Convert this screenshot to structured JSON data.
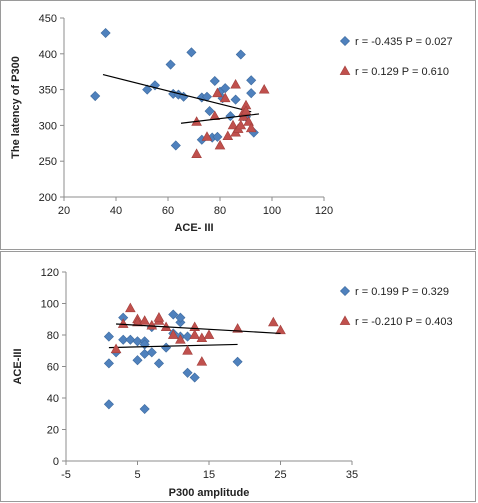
{
  "chart_data": [
    {
      "type": "scatter",
      "title": "",
      "xlabel": "ACE- III",
      "ylabel": "The latency of P300",
      "xlim": [
        20,
        120
      ],
      "ylim": [
        200,
        450
      ],
      "xticks": [
        20,
        40,
        60,
        80,
        100,
        120
      ],
      "yticks": [
        200,
        250,
        300,
        350,
        400,
        450
      ],
      "grid": false,
      "legend_position": "right",
      "series": [
        {
          "name": "r = -0.435  P = 0.027",
          "marker": "diamond",
          "color": "#4f81bd",
          "points": [
            [
              32,
              341
            ],
            [
              36,
              429
            ],
            [
              52,
              350
            ],
            [
              55,
              356
            ],
            [
              61,
              385
            ],
            [
              62,
              344
            ],
            [
              63,
              272
            ],
            [
              64,
              343
            ],
            [
              66,
              340
            ],
            [
              69,
              402
            ],
            [
              73,
              280
            ],
            [
              73,
              339
            ],
            [
              75,
              340
            ],
            [
              76,
              320
            ],
            [
              77,
              283
            ],
            [
              78,
              362
            ],
            [
              79,
              284
            ],
            [
              80,
              347
            ],
            [
              81,
              338
            ],
            [
              82,
              352
            ],
            [
              84,
              313
            ],
            [
              86,
              336
            ],
            [
              88,
              399
            ],
            [
              89,
              313
            ],
            [
              90,
              312
            ],
            [
              92,
              363
            ],
            [
              92,
              345
            ],
            [
              93,
              290
            ]
          ],
          "trendline": {
            "x": [
              35,
              92
            ],
            "y": [
              371,
              319
            ]
          }
        },
        {
          "name": "r = 0.129  P = 0.610",
          "marker": "triangle",
          "color": "#c0504d",
          "points": [
            [
              71,
              260
            ],
            [
              71,
              305
            ],
            [
              75,
              284
            ],
            [
              78,
              313
            ],
            [
              79,
              345
            ],
            [
              80,
              272
            ],
            [
              82,
              338
            ],
            [
              83,
              285
            ],
            [
              85,
              300
            ],
            [
              86,
              290
            ],
            [
              86,
              357
            ],
            [
              87,
              295
            ],
            [
              88,
              300
            ],
            [
              89,
              312
            ],
            [
              89,
              318
            ],
            [
              90,
              328
            ],
            [
              90,
              320
            ],
            [
              91,
              305
            ],
            [
              92,
              296
            ],
            [
              97,
              350
            ]
          ],
          "trendline": {
            "x": [
              65,
              95
            ],
            "y": [
              303,
              316
            ]
          }
        }
      ]
    },
    {
      "type": "scatter",
      "title": "",
      "xlabel": "P300 amplitude",
      "ylabel": "ACE-III",
      "xlim": [
        -5,
        35
      ],
      "ylim": [
        0,
        120
      ],
      "xticks": [
        -5,
        5,
        15,
        25,
        35
      ],
      "yticks": [
        0,
        20,
        40,
        60,
        80,
        100,
        120
      ],
      "grid": false,
      "legend_position": "right",
      "series": [
        {
          "name": "r = 0.199  P = 0.329",
          "marker": "diamond",
          "color": "#4f81bd",
          "points": [
            [
              1,
              79
            ],
            [
              1,
              36
            ],
            [
              1,
              62
            ],
            [
              2,
              69
            ],
            [
              3,
              91
            ],
            [
              3,
              77
            ],
            [
              4,
              77
            ],
            [
              5,
              64
            ],
            [
              5,
              76
            ],
            [
              6,
              33
            ],
            [
              6,
              76
            ],
            [
              6,
              68
            ],
            [
              6,
              74
            ],
            [
              7,
              69
            ],
            [
              7,
              85
            ],
            [
              8,
              62
            ],
            [
              9,
              72
            ],
            [
              10,
              81
            ],
            [
              10,
              93
            ],
            [
              11,
              88
            ],
            [
              11,
              91
            ],
            [
              11,
              79
            ],
            [
              12,
              79
            ],
            [
              12,
              56
            ],
            [
              13,
              53
            ],
            [
              19,
              63
            ]
          ],
          "trendline": {
            "x": [
              1,
              19
            ],
            "y": [
              72,
              74
            ]
          }
        },
        {
          "name": "r = -0.210  P = 0.403",
          "marker": "triangle",
          "color": "#c0504d",
          "points": [
            [
              2,
              71
            ],
            [
              3,
              87
            ],
            [
              4,
              97
            ],
            [
              5,
              90
            ],
            [
              5,
              88
            ],
            [
              6,
              89
            ],
            [
              7,
              86
            ],
            [
              8,
              89
            ],
            [
              8,
              91
            ],
            [
              9,
              85
            ],
            [
              10,
              80
            ],
            [
              11,
              77
            ],
            [
              12,
              70
            ],
            [
              13,
              85
            ],
            [
              13,
              80
            ],
            [
              14,
              78
            ],
            [
              14,
              63
            ],
            [
              15,
              80
            ],
            [
              19,
              84
            ],
            [
              24,
              88
            ],
            [
              25,
              83
            ]
          ],
          "trendline": {
            "x": [
              2,
              25
            ],
            "y": [
              87,
              81
            ]
          }
        }
      ]
    }
  ]
}
